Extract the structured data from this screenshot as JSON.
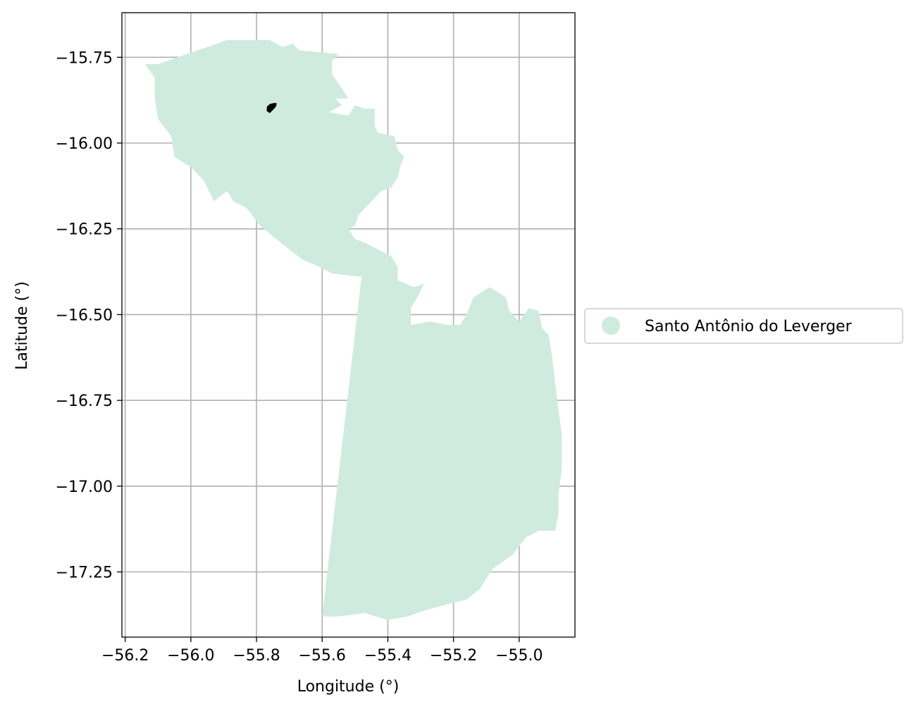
{
  "chart_data": {
    "type": "map",
    "xlabel": "Longitude (°)",
    "ylabel": "Latitude (°)",
    "xlim": [
      -56.21,
      -54.83
    ],
    "ylim": [
      -17.44,
      -15.62
    ],
    "xticks": [
      -56.2,
      -56.0,
      -55.8,
      -55.6,
      -55.4,
      -55.2,
      -55.0
    ],
    "xtick_labels": [
      "−56.2",
      "−56.0",
      "−55.8",
      "−55.6",
      "−55.4",
      "−55.2",
      "−55.0"
    ],
    "yticks": [
      -15.75,
      -16.0,
      -16.25,
      -16.5,
      -16.75,
      -17.0,
      -17.25
    ],
    "ytick_labels": [
      "−15.75",
      "−16.00",
      "−16.25",
      "−16.50",
      "−16.75",
      "−17.00",
      "−17.25"
    ],
    "grid": true,
    "legend_position": "outside right",
    "legend": [
      {
        "label": "Santo Antônio do Leverger",
        "color": "#cfebdf"
      }
    ],
    "region": {
      "name": "Santo Antônio do Leverger",
      "color": "#cfebdf",
      "boundary": [
        [
          -56.14,
          -15.77
        ],
        [
          -56.1,
          -15.77
        ],
        [
          -55.89,
          -15.7
        ],
        [
          -55.76,
          -15.7
        ],
        [
          -55.72,
          -15.72
        ],
        [
          -55.69,
          -15.71
        ],
        [
          -55.67,
          -15.73
        ],
        [
          -55.55,
          -15.74
        ],
        [
          -55.57,
          -15.76
        ],
        [
          -55.57,
          -15.8
        ],
        [
          -55.54,
          -15.84
        ],
        [
          -55.52,
          -15.87
        ],
        [
          -55.56,
          -15.87
        ],
        [
          -55.54,
          -15.89
        ],
        [
          -55.58,
          -15.91
        ],
        [
          -55.52,
          -15.92
        ],
        [
          -55.5,
          -15.89
        ],
        [
          -55.47,
          -15.9
        ],
        [
          -55.44,
          -15.9
        ],
        [
          -55.44,
          -15.95
        ],
        [
          -55.43,
          -15.97
        ],
        [
          -55.38,
          -15.98
        ],
        [
          -55.37,
          -16.02
        ],
        [
          -55.35,
          -16.04
        ],
        [
          -55.36,
          -16.06
        ],
        [
          -55.37,
          -16.1
        ],
        [
          -55.39,
          -16.13
        ],
        [
          -55.42,
          -16.14
        ],
        [
          -55.46,
          -16.18
        ],
        [
          -55.49,
          -16.21
        ],
        [
          -55.5,
          -16.24
        ],
        [
          -55.52,
          -16.25
        ],
        [
          -55.5,
          -16.28
        ],
        [
          -55.47,
          -16.29
        ],
        [
          -55.43,
          -16.31
        ],
        [
          -55.39,
          -16.33
        ],
        [
          -55.37,
          -16.36
        ],
        [
          -55.37,
          -16.4
        ],
        [
          -55.32,
          -16.42
        ],
        [
          -55.29,
          -16.41
        ],
        [
          -55.31,
          -16.45
        ],
        [
          -55.33,
          -16.48
        ],
        [
          -55.33,
          -16.53
        ],
        [
          -55.27,
          -16.52
        ],
        [
          -55.22,
          -16.53
        ],
        [
          -55.18,
          -16.53
        ],
        [
          -55.16,
          -16.5
        ],
        [
          -55.14,
          -16.45
        ],
        [
          -55.09,
          -16.42
        ],
        [
          -55.04,
          -16.45
        ],
        [
          -55.03,
          -16.49
        ],
        [
          -55.0,
          -16.52
        ],
        [
          -54.97,
          -16.48
        ],
        [
          -54.94,
          -16.49
        ],
        [
          -54.93,
          -16.54
        ],
        [
          -54.91,
          -16.56
        ],
        [
          -54.9,
          -16.62
        ],
        [
          -54.89,
          -16.7
        ],
        [
          -54.88,
          -16.78
        ],
        [
          -54.87,
          -16.85
        ],
        [
          -54.87,
          -16.95
        ],
        [
          -54.88,
          -17.02
        ],
        [
          -54.88,
          -17.08
        ],
        [
          -54.89,
          -17.13
        ],
        [
          -54.94,
          -17.13
        ],
        [
          -54.98,
          -17.15
        ],
        [
          -55.02,
          -17.2
        ],
        [
          -55.08,
          -17.24
        ],
        [
          -55.12,
          -17.3
        ],
        [
          -55.16,
          -17.33
        ],
        [
          -55.2,
          -17.34
        ],
        [
          -55.28,
          -17.36
        ],
        [
          -55.34,
          -17.38
        ],
        [
          -55.4,
          -17.39
        ],
        [
          -55.47,
          -17.37
        ],
        [
          -55.55,
          -17.38
        ],
        [
          -55.6,
          -17.38
        ],
        [
          -55.48,
          -16.39
        ],
        [
          -55.57,
          -16.38
        ],
        [
          -55.61,
          -16.36
        ],
        [
          -55.66,
          -16.34
        ],
        [
          -55.7,
          -16.31
        ],
        [
          -55.74,
          -16.28
        ],
        [
          -55.79,
          -16.24
        ],
        [
          -55.83,
          -16.19
        ],
        [
          -55.87,
          -16.17
        ],
        [
          -55.89,
          -16.14
        ],
        [
          -55.93,
          -16.17
        ],
        [
          -55.96,
          -16.11
        ],
        [
          -56.0,
          -16.07
        ],
        [
          -56.05,
          -16.04
        ],
        [
          -56.06,
          -15.98
        ],
        [
          -56.1,
          -15.93
        ],
        [
          -56.11,
          -15.87
        ],
        [
          -56.11,
          -15.81
        ],
        [
          -56.14,
          -15.77
        ]
      ]
    },
    "marker": {
      "color": "#000000",
      "outline": [
        [
          -55.765,
          -15.895
        ],
        [
          -55.758,
          -15.889
        ],
        [
          -55.75,
          -15.887
        ],
        [
          -55.742,
          -15.886
        ],
        [
          -55.744,
          -15.893
        ],
        [
          -55.752,
          -15.901
        ],
        [
          -55.76,
          -15.909
        ],
        [
          -55.766,
          -15.905
        ],
        [
          -55.765,
          -15.895
        ]
      ]
    }
  }
}
